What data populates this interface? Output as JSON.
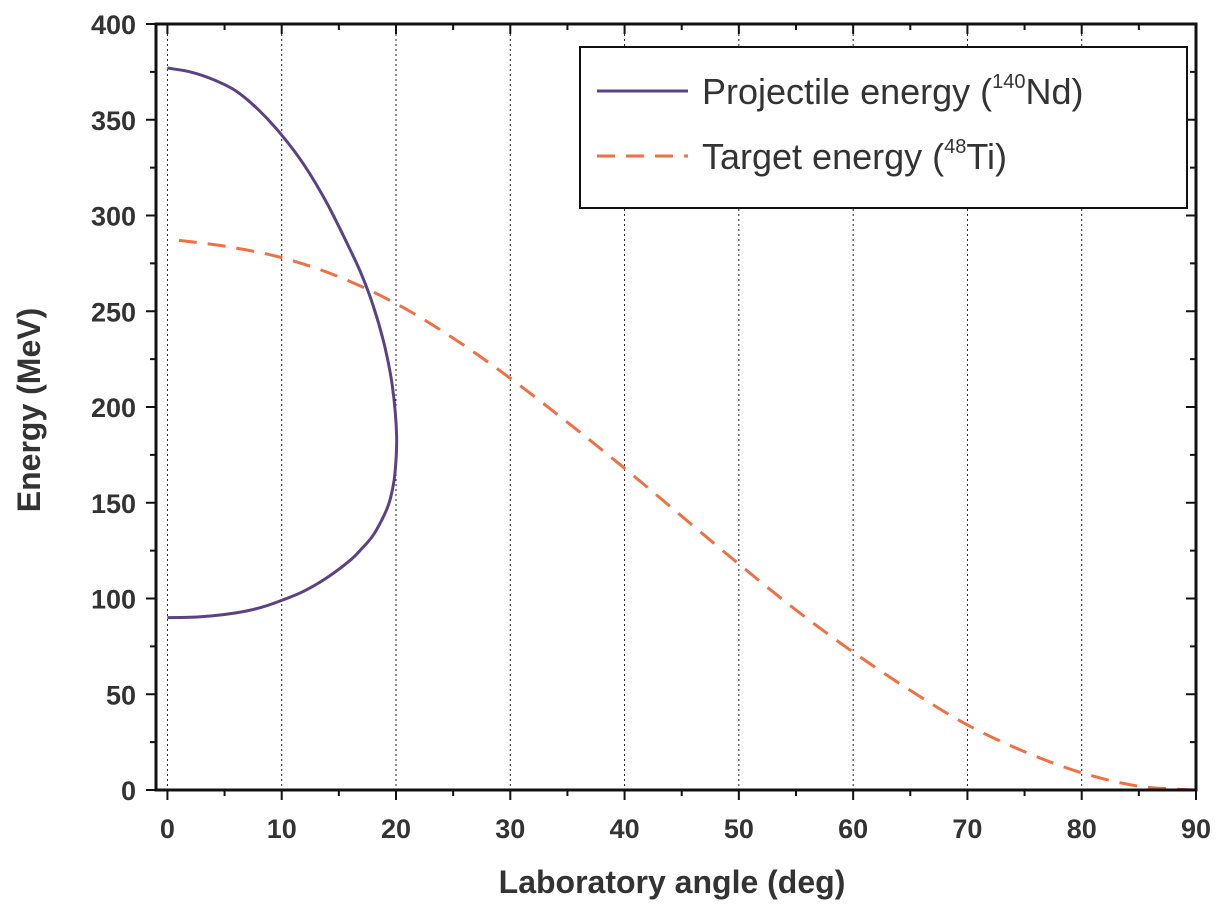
{
  "chart_data": {
    "type": "line",
    "xlabel": "Laboratory angle (deg)",
    "ylabel": "Energy (MeV)",
    "xlim": [
      -1,
      90
    ],
    "ylim": [
      0,
      400
    ],
    "x_ticks": [
      0,
      10,
      20,
      30,
      40,
      50,
      60,
      70,
      80,
      90
    ],
    "x_tick_labels": [
      "0",
      "10",
      "20",
      "30",
      "40",
      "50",
      "60",
      "70",
      "80",
      "90"
    ],
    "y_ticks": [
      0,
      50,
      100,
      150,
      200,
      250,
      300,
      350,
      400
    ],
    "y_tick_labels": [
      "0",
      "50",
      "100",
      "150",
      "200",
      "250",
      "300",
      "350",
      "400"
    ],
    "grid": "vertical dotted",
    "legend_position": "top-right",
    "series": [
      {
        "name": "Projectile energy (140Nd)",
        "legend": {
          "pre": "Projectile energy (",
          "sup": "140",
          "post": "Nd)"
        },
        "color": "#5b4285",
        "style": "solid",
        "points": [
          [
            0,
            377
          ],
          [
            2,
            375
          ],
          [
            4,
            371
          ],
          [
            6,
            365
          ],
          [
            8,
            355
          ],
          [
            10,
            342
          ],
          [
            12,
            326
          ],
          [
            14,
            306
          ],
          [
            16,
            282
          ],
          [
            17,
            269
          ],
          [
            18,
            253
          ],
          [
            19,
            232
          ],
          [
            19.7,
            210
          ],
          [
            20.05,
            185
          ],
          [
            19.9,
            165
          ],
          [
            19.5,
            152
          ],
          [
            19,
            144
          ],
          [
            18,
            133
          ],
          [
            17,
            126
          ],
          [
            16,
            120
          ],
          [
            14,
            111
          ],
          [
            12,
            104
          ],
          [
            10,
            99
          ],
          [
            8,
            95
          ],
          [
            6,
            92.5
          ],
          [
            4,
            91
          ],
          [
            2,
            90.2
          ],
          [
            0,
            90
          ]
        ]
      },
      {
        "name": "Target energy (48Ti)",
        "legend": {
          "pre": "Target energy (",
          "sup": "48",
          "post": "Ti)"
        },
        "color": "#ee7044",
        "style": "dashed",
        "points": [
          [
            1,
            287
          ],
          [
            5,
            284
          ],
          [
            10,
            278
          ],
          [
            15,
            268
          ],
          [
            20,
            254
          ],
          [
            25,
            236
          ],
          [
            30,
            215
          ],
          [
            35,
            192
          ],
          [
            40,
            168
          ],
          [
            45,
            143
          ],
          [
            50,
            118
          ],
          [
            55,
            94
          ],
          [
            60,
            72
          ],
          [
            65,
            52
          ],
          [
            70,
            34
          ],
          [
            75,
            20
          ],
          [
            80,
            9
          ],
          [
            85,
            2
          ],
          [
            90,
            0
          ]
        ]
      }
    ]
  }
}
